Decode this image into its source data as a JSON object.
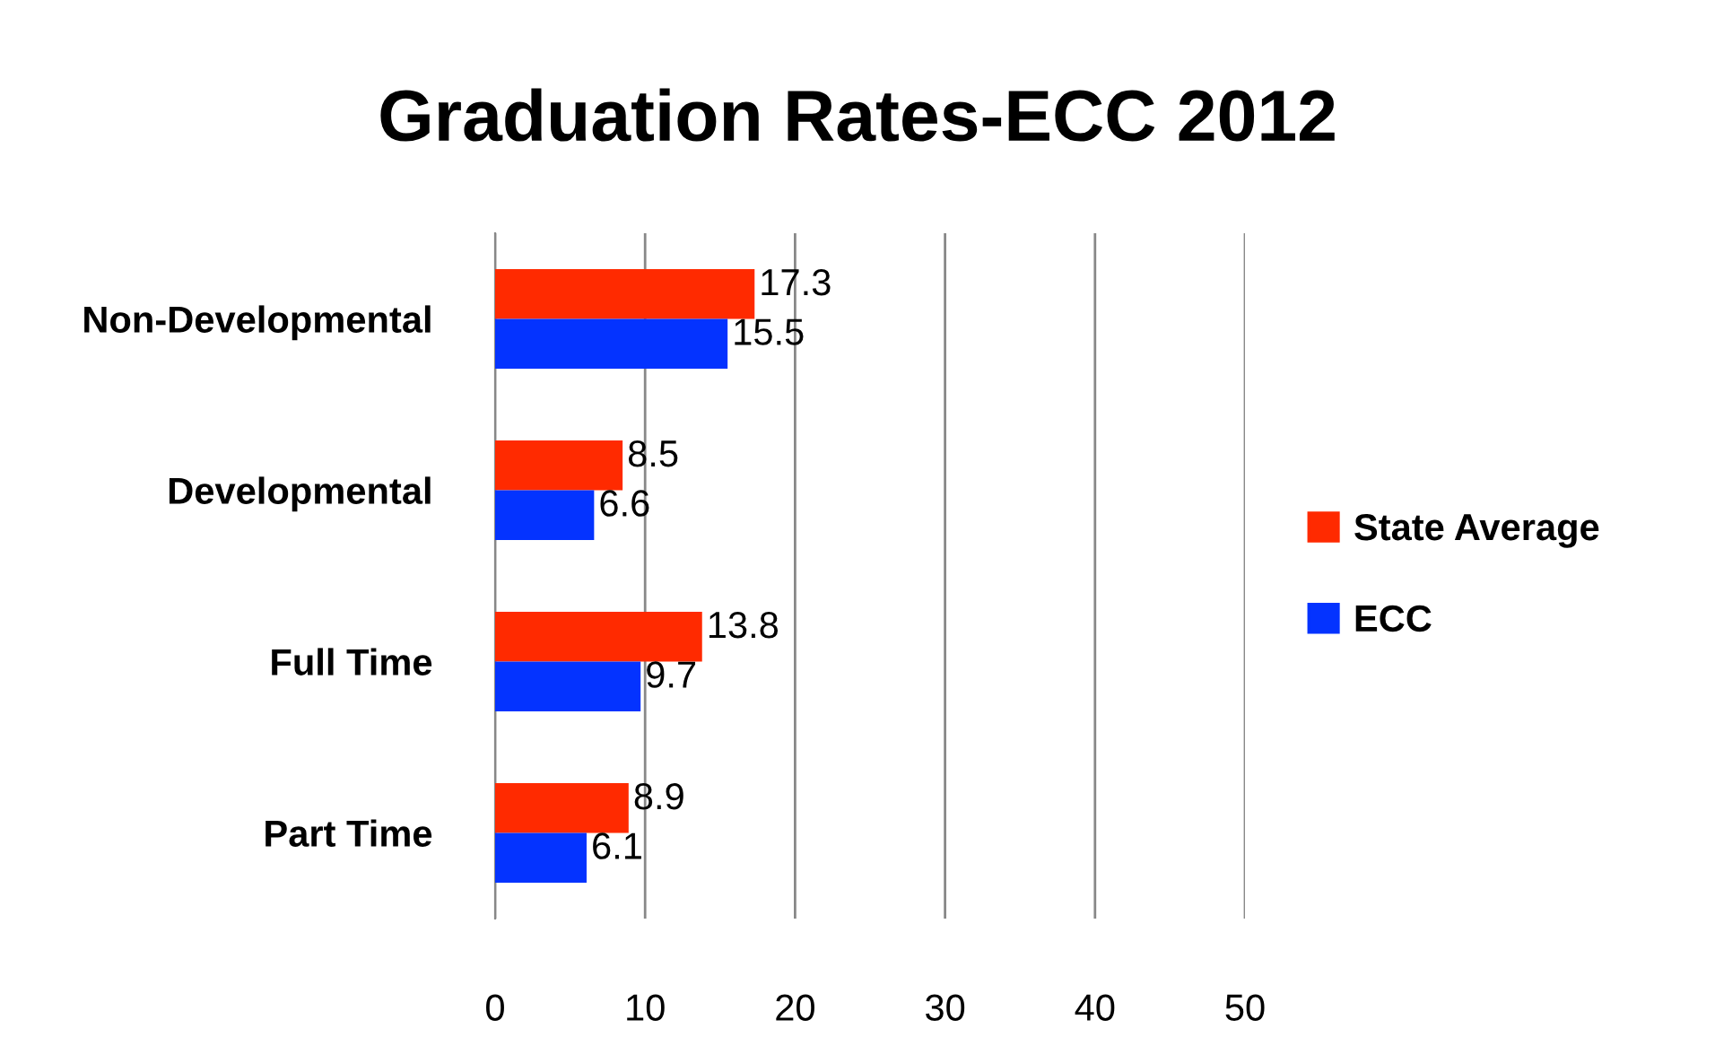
{
  "chart_data": {
    "type": "bar",
    "orientation": "horizontal",
    "title": "Graduation Rates-ECC 2012",
    "categories": [
      "Non-Developmental",
      "Developmental",
      "Full Time",
      "Part Time"
    ],
    "series": [
      {
        "name": "State Average",
        "color": "#ff2a00",
        "values": [
          17.3,
          8.5,
          13.8,
          8.9
        ]
      },
      {
        "name": "ECC",
        "color": "#0433ff",
        "values": [
          15.5,
          6.6,
          9.7,
          6.1
        ]
      }
    ],
    "xlim": [
      0,
      50
    ],
    "xticks": [
      0,
      10,
      20,
      30,
      40,
      50
    ],
    "grid": "x",
    "legend": "right",
    "data_labels": true
  }
}
